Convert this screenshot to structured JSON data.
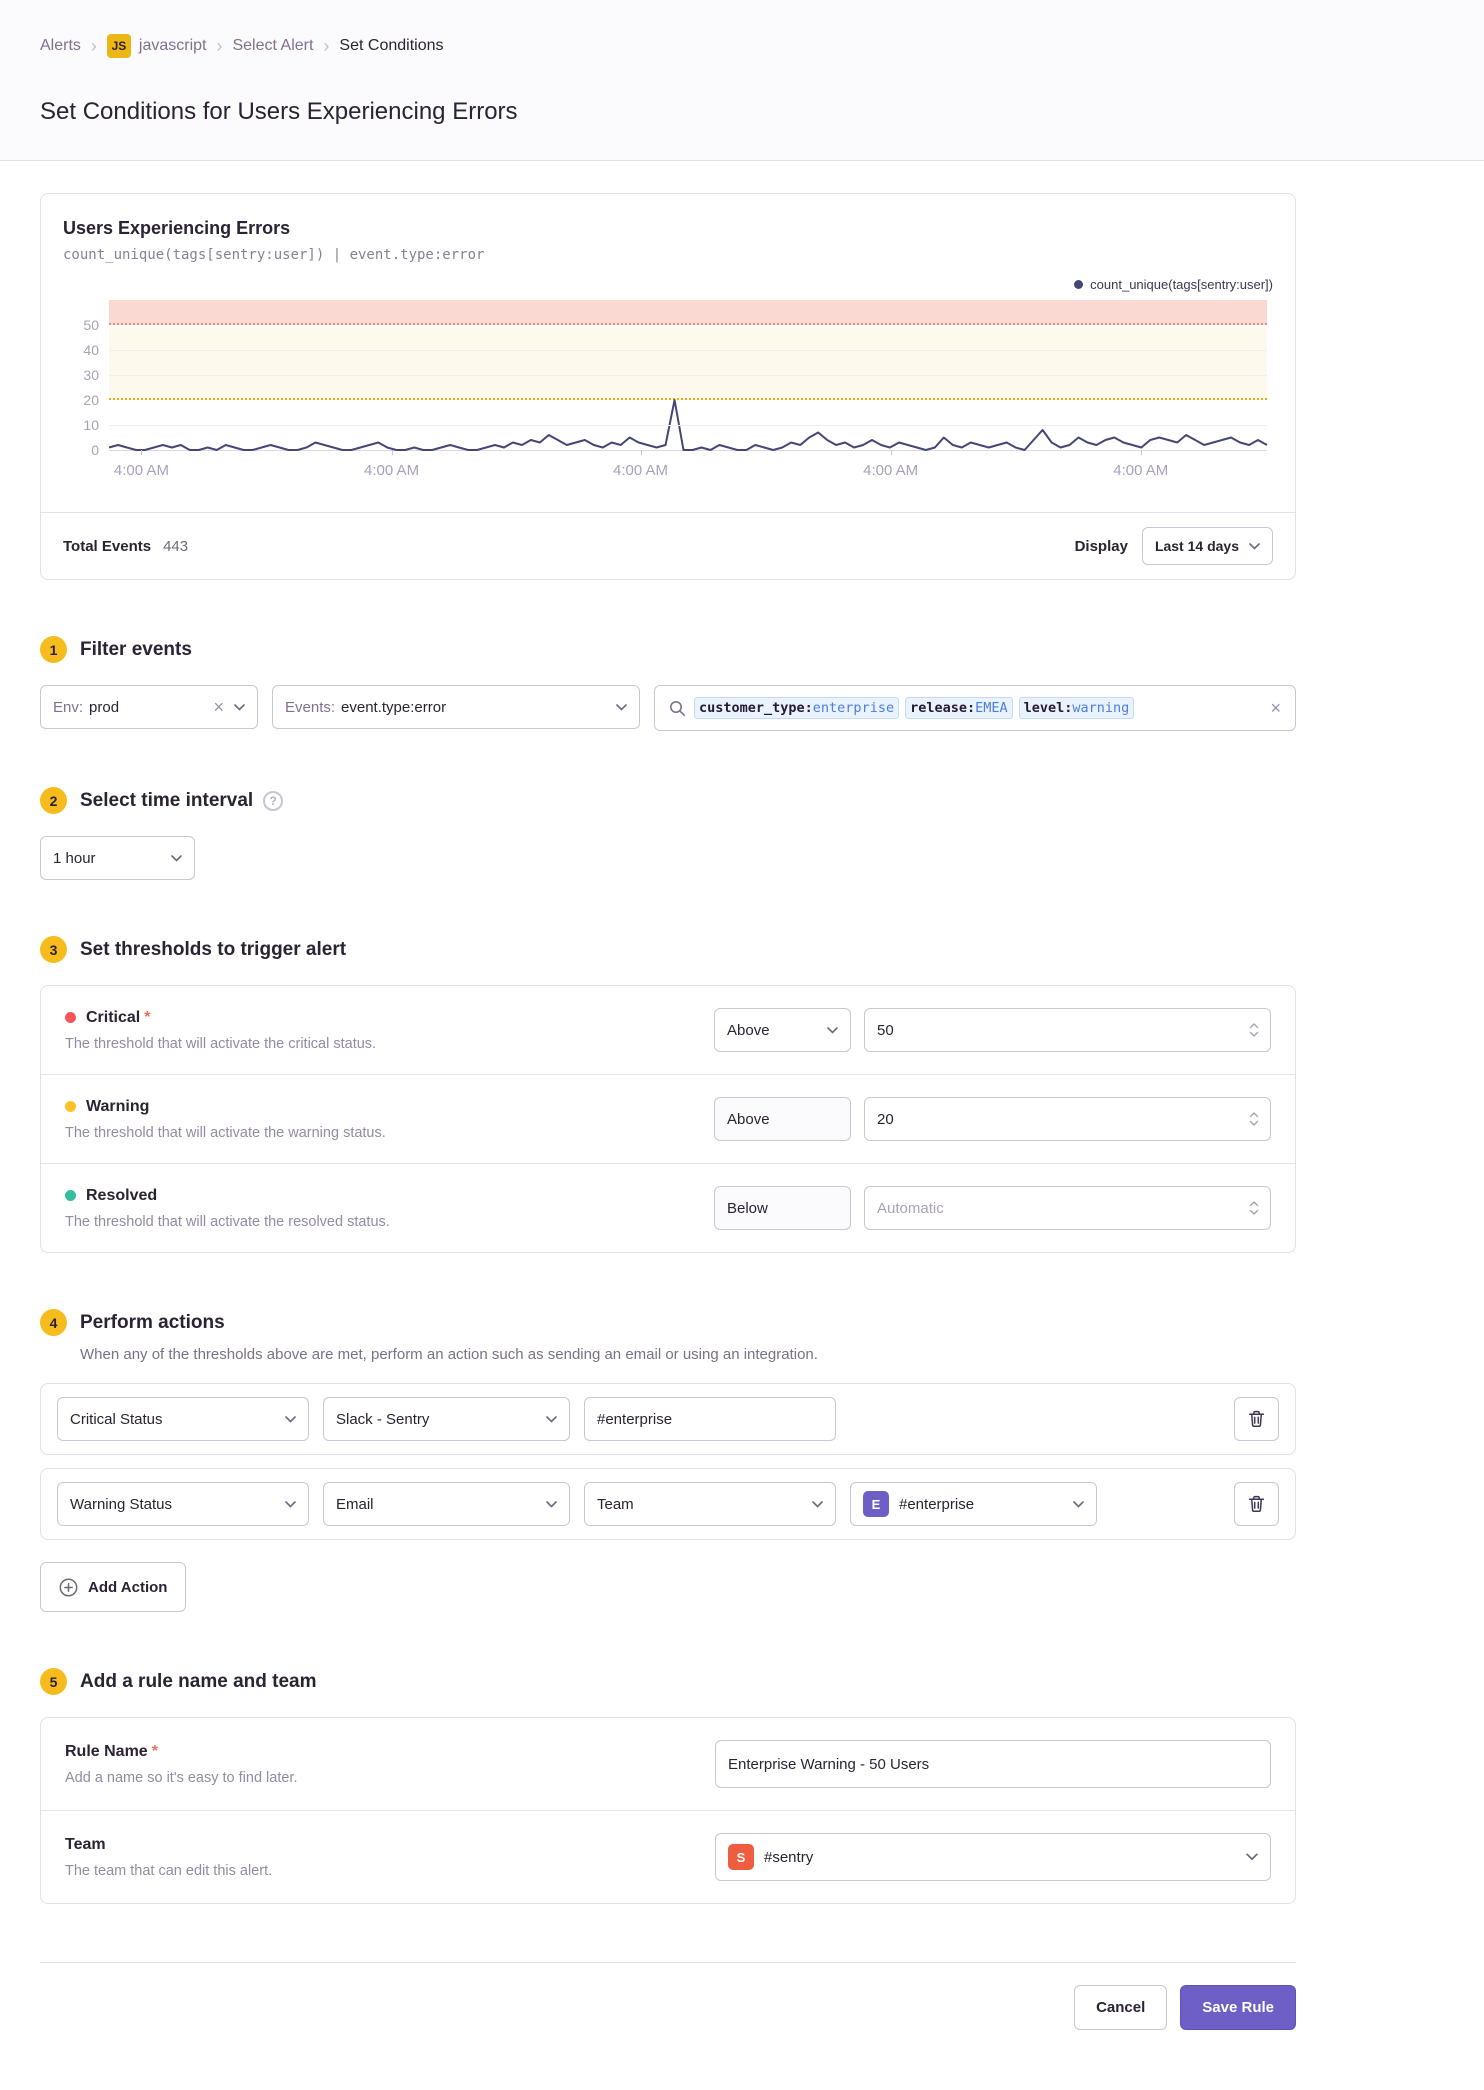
{
  "breadcrumb": {
    "items": [
      "Alerts",
      "javascript",
      "Select Alert",
      "Set Conditions"
    ],
    "project_badge": "JS"
  },
  "page": {
    "title": "Set Conditions for Users Experiencing Errors"
  },
  "chart_card": {
    "title": "Users Experiencing Errors",
    "subtitle": "count_unique(tags[sentry:user]) | event.type:error",
    "legend_label": "count_unique(tags[sentry:user])",
    "total_events_label": "Total Events",
    "total_events_value": "443",
    "display_label": "Display",
    "display_value": "Last 14 days"
  },
  "chart_data": {
    "type": "line",
    "title": "Users Experiencing Errors",
    "ylabel": "",
    "xlabel": "",
    "ylim": [
      0,
      60
    ],
    "y_ticks": [
      0,
      10,
      20,
      30,
      40,
      50
    ],
    "x_tick_labels": [
      "4:00 AM",
      "4:00 AM",
      "4:00 AM",
      "4:00 AM",
      "4:00 AM"
    ],
    "x_tick_positions_pct": [
      2.8,
      24.4,
      45.9,
      67.5,
      89.1
    ],
    "thresholds": {
      "critical_above": 50,
      "warning_above": 20
    },
    "legend_position": "top-right",
    "grid": true,
    "series": [
      {
        "name": "count_unique(tags[sentry:user])",
        "values": [
          1,
          2,
          1,
          0,
          0,
          1,
          2,
          1,
          2,
          0,
          0,
          1,
          0,
          2,
          1,
          0,
          0,
          1,
          2,
          1,
          0,
          0,
          1,
          3,
          2,
          1,
          0,
          0,
          1,
          2,
          3,
          1,
          0,
          0,
          1,
          0,
          0,
          1,
          2,
          1,
          0,
          0,
          1,
          2,
          1,
          3,
          2,
          4,
          3,
          6,
          4,
          2,
          3,
          4,
          2,
          1,
          3,
          2,
          5,
          3,
          2,
          1,
          2,
          20,
          0,
          0,
          1,
          0,
          2,
          1,
          0,
          0,
          2,
          1,
          0,
          1,
          3,
          2,
          5,
          7,
          4,
          2,
          3,
          1,
          2,
          4,
          2,
          1,
          3,
          2,
          1,
          0,
          1,
          5,
          2,
          1,
          3,
          2,
          1,
          2,
          3,
          1,
          0,
          4,
          8,
          3,
          1,
          2,
          5,
          3,
          2,
          4,
          5,
          3,
          2,
          1,
          4,
          5,
          4,
          3,
          6,
          4,
          2,
          3,
          4,
          5,
          3,
          2,
          4,
          2
        ]
      }
    ],
    "colors": {
      "line": "#444674",
      "critical_band": "#fbd9d3",
      "critical_line": "#f0907e",
      "warning_band": "#fdf9ec",
      "warning_line": "#e9a913"
    }
  },
  "filter": {
    "step": "1",
    "title": "Filter events",
    "env": {
      "label": "Env:",
      "value": "prod"
    },
    "events": {
      "label": "Events:",
      "value": "event.type:error"
    },
    "search": {
      "tokens": [
        {
          "key": "customer_type:",
          "value": "enterprise"
        },
        {
          "key": "release:",
          "value": "EMEA"
        },
        {
          "key": "level:",
          "value": "warning"
        }
      ]
    }
  },
  "interval": {
    "step": "2",
    "title": "Select time interval",
    "value": "1 hour"
  },
  "thresholds": {
    "step": "3",
    "title": "Set thresholds to trigger alert",
    "rows": [
      {
        "name": "Critical",
        "dot_color": "#f55459",
        "description": "The threshold that will activate the critical status.",
        "comparison": "Above",
        "value": "50"
      },
      {
        "name": "Warning",
        "dot_color": "#ffc227",
        "description": "The threshold that will activate the warning status.",
        "comparison": "Above",
        "value": "20"
      },
      {
        "name": "Resolved",
        "dot_color": "#33bf9e",
        "description": "The threshold that will activate the resolved status.",
        "comparison": "Below",
        "placeholder": "Automatic"
      }
    ]
  },
  "actions": {
    "step": "4",
    "title": "Perform actions",
    "description": "When any of the thresholds above are met, perform an action such as sending an email or using an integration.",
    "row1": {
      "status": "Critical Status",
      "service": "Slack - Sentry",
      "target": "#enterprise"
    },
    "row2": {
      "status": "Warning Status",
      "service": "Email",
      "target_type": "Team",
      "target": "#enterprise",
      "badge": "E",
      "badge_color": "#6e5fc6"
    },
    "add_label": "Add Action"
  },
  "rule": {
    "step": "5",
    "title": "Add a rule name and team",
    "name_row": {
      "label": "Rule Name",
      "description": "Add a name so it's easy to find later.",
      "value": "Enterprise Warning - 50 Users"
    },
    "team_row": {
      "label": "Team",
      "description": "The team that can edit this alert.",
      "value": "#sentry",
      "badge": "S",
      "badge_color": "#ee5d40"
    }
  },
  "footer": {
    "cancel_label": "Cancel",
    "save_label": "Save Rule"
  }
}
